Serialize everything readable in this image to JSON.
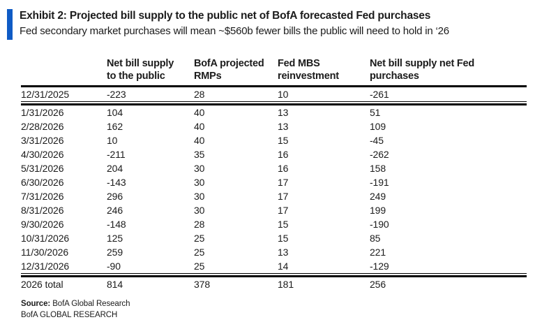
{
  "page": {
    "title": "Exhibit 2: Projected bill supply to the public net of BofA forecasted Fed purchases",
    "subtitle": "Fed secondary market purchases will mean ~$560b fewer bills the public will need to hold in ‘26",
    "accent_color": "#0f5bc5"
  },
  "table": {
    "header": [
      "",
      "Net bill supply\nto the public",
      "BofA projected\nRMPs",
      "Fed MBS\nreinvestment",
      "Net bill supply net Fed\npurchases"
    ],
    "rows": [
      [
        "12/31/2025",
        "-223",
        "28",
        "10",
        "-261"
      ],
      [
        "1/31/2026",
        "104",
        "40",
        "13",
        "51"
      ],
      [
        "2/28/2026",
        "162",
        "40",
        "13",
        "109"
      ],
      [
        "3/31/2026",
        "10",
        "40",
        "15",
        "-45"
      ],
      [
        "4/30/2026",
        "-211",
        "35",
        "16",
        "-262"
      ],
      [
        "5/31/2026",
        "204",
        "30",
        "16",
        "158"
      ],
      [
        "6/30/2026",
        "-143",
        "30",
        "17",
        "-191"
      ],
      [
        "7/31/2026",
        "296",
        "30",
        "17",
        "249"
      ],
      [
        "8/31/2026",
        "246",
        "30",
        "17",
        "199"
      ],
      [
        "9/30/2026",
        "-148",
        "28",
        "15",
        "-190"
      ],
      [
        "10/31/2026",
        "125",
        "25",
        "15",
        "85"
      ],
      [
        "11/30/2026",
        "259",
        "25",
        "13",
        "221"
      ],
      [
        "12/31/2026",
        "-90",
        "25",
        "14",
        "-129"
      ]
    ],
    "total": [
      "2026 total",
      "814",
      "378",
      "181",
      "256"
    ]
  },
  "footer": {
    "source_label": "Source:",
    "source_text": " BofA Global Research",
    "brand_line": "BofA GLOBAL RESEARCH"
  }
}
